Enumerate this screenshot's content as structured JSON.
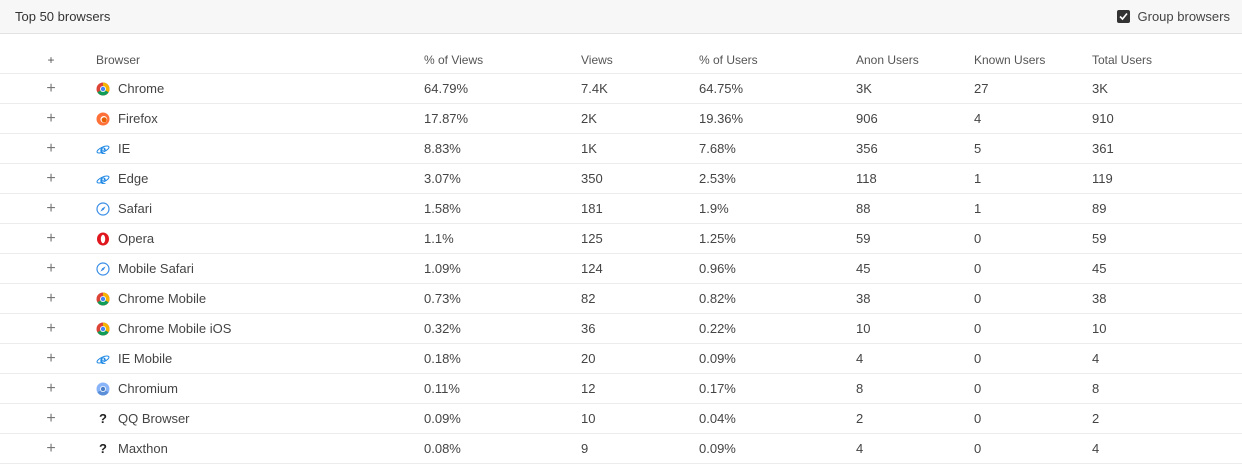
{
  "header": {
    "title": "Top 50 browsers",
    "group_label": "Group browsers",
    "group_checked": true
  },
  "columns": {
    "browser": "Browser",
    "pct_views": "% of Views",
    "views": "Views",
    "pct_users": "% of Users",
    "anon_users": "Anon Users",
    "known_users": "Known Users",
    "total_users": "Total Users"
  },
  "expand_symbol": "+",
  "rows": [
    {
      "icon": "chrome-icon",
      "name": "Chrome",
      "pct_views": "64.79%",
      "views": "7.4K",
      "pct_users": "64.75%",
      "anon": "3K",
      "known": "27",
      "total": "3K"
    },
    {
      "icon": "firefox-icon",
      "name": "Firefox",
      "pct_views": "17.87%",
      "views": "2K",
      "pct_users": "19.36%",
      "anon": "906",
      "known": "4",
      "total": "910"
    },
    {
      "icon": "ie-icon",
      "name": "IE",
      "pct_views": "8.83%",
      "views": "1K",
      "pct_users": "7.68%",
      "anon": "356",
      "known": "5",
      "total": "361"
    },
    {
      "icon": "edge-icon",
      "name": "Edge",
      "pct_views": "3.07%",
      "views": "350",
      "pct_users": "2.53%",
      "anon": "118",
      "known": "1",
      "total": "119"
    },
    {
      "icon": "safari-icon",
      "name": "Safari",
      "pct_views": "1.58%",
      "views": "181",
      "pct_users": "1.9%",
      "anon": "88",
      "known": "1",
      "total": "89"
    },
    {
      "icon": "opera-icon",
      "name": "Opera",
      "pct_views": "1.1%",
      "views": "125",
      "pct_users": "1.25%",
      "anon": "59",
      "known": "0",
      "total": "59"
    },
    {
      "icon": "safari-icon",
      "name": "Mobile Safari",
      "pct_views": "1.09%",
      "views": "124",
      "pct_users": "0.96%",
      "anon": "45",
      "known": "0",
      "total": "45"
    },
    {
      "icon": "chrome-icon",
      "name": "Chrome Mobile",
      "pct_views": "0.73%",
      "views": "82",
      "pct_users": "0.82%",
      "anon": "38",
      "known": "0",
      "total": "38"
    },
    {
      "icon": "chrome-icon",
      "name": "Chrome Mobile iOS",
      "pct_views": "0.32%",
      "views": "36",
      "pct_users": "0.22%",
      "anon": "10",
      "known": "0",
      "total": "10"
    },
    {
      "icon": "ie-icon",
      "name": "IE Mobile",
      "pct_views": "0.18%",
      "views": "20",
      "pct_users": "0.09%",
      "anon": "4",
      "known": "0",
      "total": "4"
    },
    {
      "icon": "chromium-icon",
      "name": "Chromium",
      "pct_views": "0.11%",
      "views": "12",
      "pct_users": "0.17%",
      "anon": "8",
      "known": "0",
      "total": "8"
    },
    {
      "icon": "unknown-browser-icon",
      "name": "QQ Browser",
      "pct_views": "0.09%",
      "views": "10",
      "pct_users": "0.04%",
      "anon": "2",
      "known": "0",
      "total": "2"
    },
    {
      "icon": "unknown-browser-icon",
      "name": "Maxthon",
      "pct_views": "0.08%",
      "views": "9",
      "pct_users": "0.09%",
      "anon": "4",
      "known": "0",
      "total": "4"
    }
  ]
}
